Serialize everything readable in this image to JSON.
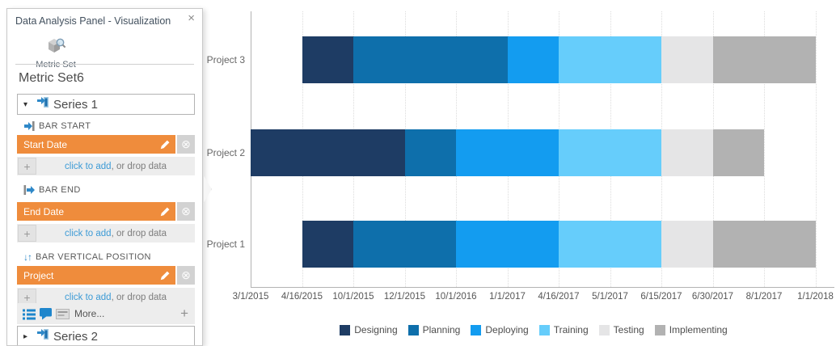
{
  "panel": {
    "title": "Data Analysis Panel - Visualization",
    "metric_set_label": "Metric Set",
    "metric_set_name": "Metric Set6",
    "series1_label": "Series 1",
    "series2_label": "Series 2",
    "sections": [
      {
        "label": "BAR START",
        "pill": "Start Date"
      },
      {
        "label": "BAR END",
        "pill": "End Date"
      },
      {
        "label": "BAR VERTICAL POSITION",
        "pill": "Project"
      }
    ],
    "click_to_add": {
      "link": "click to add",
      "rest": ", or drop data"
    },
    "more_label": "More..."
  },
  "icons": {
    "close_glyph": "×",
    "collapse_glyph": "▾",
    "expand_glyph": "▸",
    "remove_glyph": "⊗",
    "plus_glyph": "+",
    "updown_arrows_glyph": "↓↑"
  },
  "chart_data": {
    "type": "bar",
    "subtype": "gantt-stacked-horizontal",
    "x_ticks": [
      "3/1/2015",
      "4/16/2015",
      "10/1/2015",
      "12/1/2015",
      "10/1/2016",
      "1/1/2017",
      "4/16/2017",
      "5/1/2017",
      "6/15/2017",
      "6/30/2017",
      "8/1/2017",
      "1/1/2018"
    ],
    "grid": "vertical-dotted",
    "legend_position": "bottom-center",
    "rows": [
      {
        "label": "Project 3",
        "segments": [
          {
            "phase": "Designing",
            "start_tick": 1,
            "end_tick": 2,
            "start_date": "4/16/2015",
            "end_date": "10/1/2015"
          },
          {
            "phase": "Planning",
            "start_tick": 2,
            "end_tick": 5,
            "start_date": "10/1/2015",
            "end_date": "1/1/2017"
          },
          {
            "phase": "Deploying",
            "start_tick": 5,
            "end_tick": 6,
            "start_date": "1/1/2017",
            "end_date": "4/16/2017"
          },
          {
            "phase": "Training",
            "start_tick": 6,
            "end_tick": 8,
            "start_date": "4/16/2017",
            "end_date": "6/15/2017"
          },
          {
            "phase": "Testing",
            "start_tick": 8,
            "end_tick": 9,
            "start_date": "6/15/2017",
            "end_date": "6/30/2017"
          },
          {
            "phase": "Implementing",
            "start_tick": 9,
            "end_tick": 11,
            "start_date": "6/30/2017",
            "end_date": "1/1/2018"
          }
        ]
      },
      {
        "label": "Project 2",
        "segments": [
          {
            "phase": "Designing",
            "start_tick": 0,
            "end_tick": 3,
            "start_date": "3/1/2015",
            "end_date": "12/1/2015"
          },
          {
            "phase": "Planning",
            "start_tick": 3,
            "end_tick": 4,
            "start_date": "12/1/2015",
            "end_date": "10/1/2016"
          },
          {
            "phase": "Deploying",
            "start_tick": 4,
            "end_tick": 6,
            "start_date": "10/1/2016",
            "end_date": "4/16/2017"
          },
          {
            "phase": "Training",
            "start_tick": 6,
            "end_tick": 8,
            "start_date": "4/16/2017",
            "end_date": "6/15/2017"
          },
          {
            "phase": "Testing",
            "start_tick": 8,
            "end_tick": 9,
            "start_date": "6/15/2017",
            "end_date": "6/30/2017"
          },
          {
            "phase": "Implementing",
            "start_tick": 9,
            "end_tick": 10,
            "start_date": "6/30/2017",
            "end_date": "8/1/2017"
          }
        ]
      },
      {
        "label": "Project 1",
        "segments": [
          {
            "phase": "Designing",
            "start_tick": 1,
            "end_tick": 2,
            "start_date": "4/16/2015",
            "end_date": "10/1/2015"
          },
          {
            "phase": "Planning",
            "start_tick": 2,
            "end_tick": 4,
            "start_date": "10/1/2015",
            "end_date": "10/1/2016"
          },
          {
            "phase": "Deploying",
            "start_tick": 4,
            "end_tick": 6,
            "start_date": "10/1/2016",
            "end_date": "4/16/2017"
          },
          {
            "phase": "Training",
            "start_tick": 6,
            "end_tick": 8,
            "start_date": "4/16/2017",
            "end_date": "6/15/2017"
          },
          {
            "phase": "Testing",
            "start_tick": 8,
            "end_tick": 9,
            "start_date": "6/15/2017",
            "end_date": "6/30/2017"
          },
          {
            "phase": "Implementing",
            "start_tick": 9,
            "end_tick": 11,
            "start_date": "6/30/2017",
            "end_date": "1/1/2018"
          }
        ]
      }
    ],
    "legend": [
      {
        "label": "Designing",
        "color": "#1e3c64"
      },
      {
        "label": "Planning",
        "color": "#0e6fab"
      },
      {
        "label": "Deploying",
        "color": "#139cf0"
      },
      {
        "label": "Training",
        "color": "#66cdfb"
      },
      {
        "label": "Testing",
        "color": "#e5e5e6"
      },
      {
        "label": "Implementing",
        "color": "#b2b2b2"
      }
    ]
  }
}
